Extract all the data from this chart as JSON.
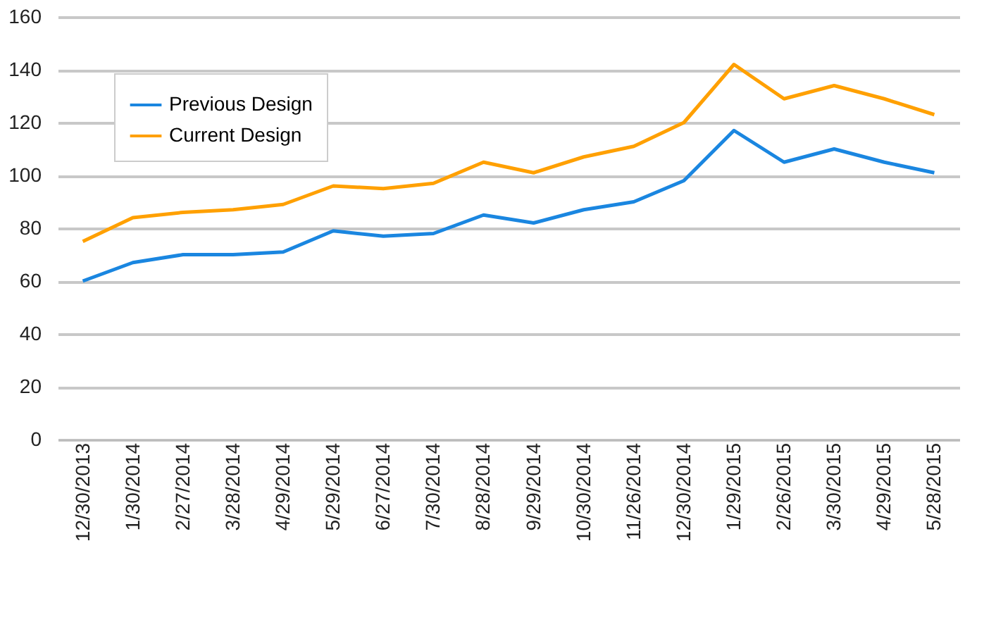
{
  "chart_data": {
    "type": "line",
    "categories": [
      "12/30/2013",
      "1/30/2014",
      "2/27/2014",
      "3/28/2014",
      "4/29/2014",
      "5/29/2014",
      "6/27/2014",
      "7/30/2014",
      "8/28/2014",
      "9/29/2014",
      "10/30/2014",
      "11/26/2014",
      "12/30/2014",
      "1/29/2015",
      "2/26/2015",
      "3/30/2015",
      "4/29/2015",
      "5/28/2015"
    ],
    "series": [
      {
        "name": "Previous Design",
        "color": "#1a86e0",
        "values": [
          60,
          67,
          70,
          70,
          71,
          79,
          77,
          78,
          85,
          82,
          87,
          90,
          98,
          117,
          105,
          110,
          105,
          101
        ]
      },
      {
        "name": "Current Design",
        "color": "#ffa000",
        "values": [
          75,
          84,
          86,
          87,
          89,
          96,
          95,
          97,
          105,
          101,
          107,
          111,
          120,
          142,
          129,
          134,
          129,
          123
        ]
      }
    ],
    "ylim": [
      0,
      160
    ],
    "yticks": [
      0,
      20,
      40,
      60,
      80,
      100,
      120,
      140,
      160
    ],
    "grid": "y",
    "legend": "top left",
    "marker": "none",
    "line_style": "solid"
  }
}
